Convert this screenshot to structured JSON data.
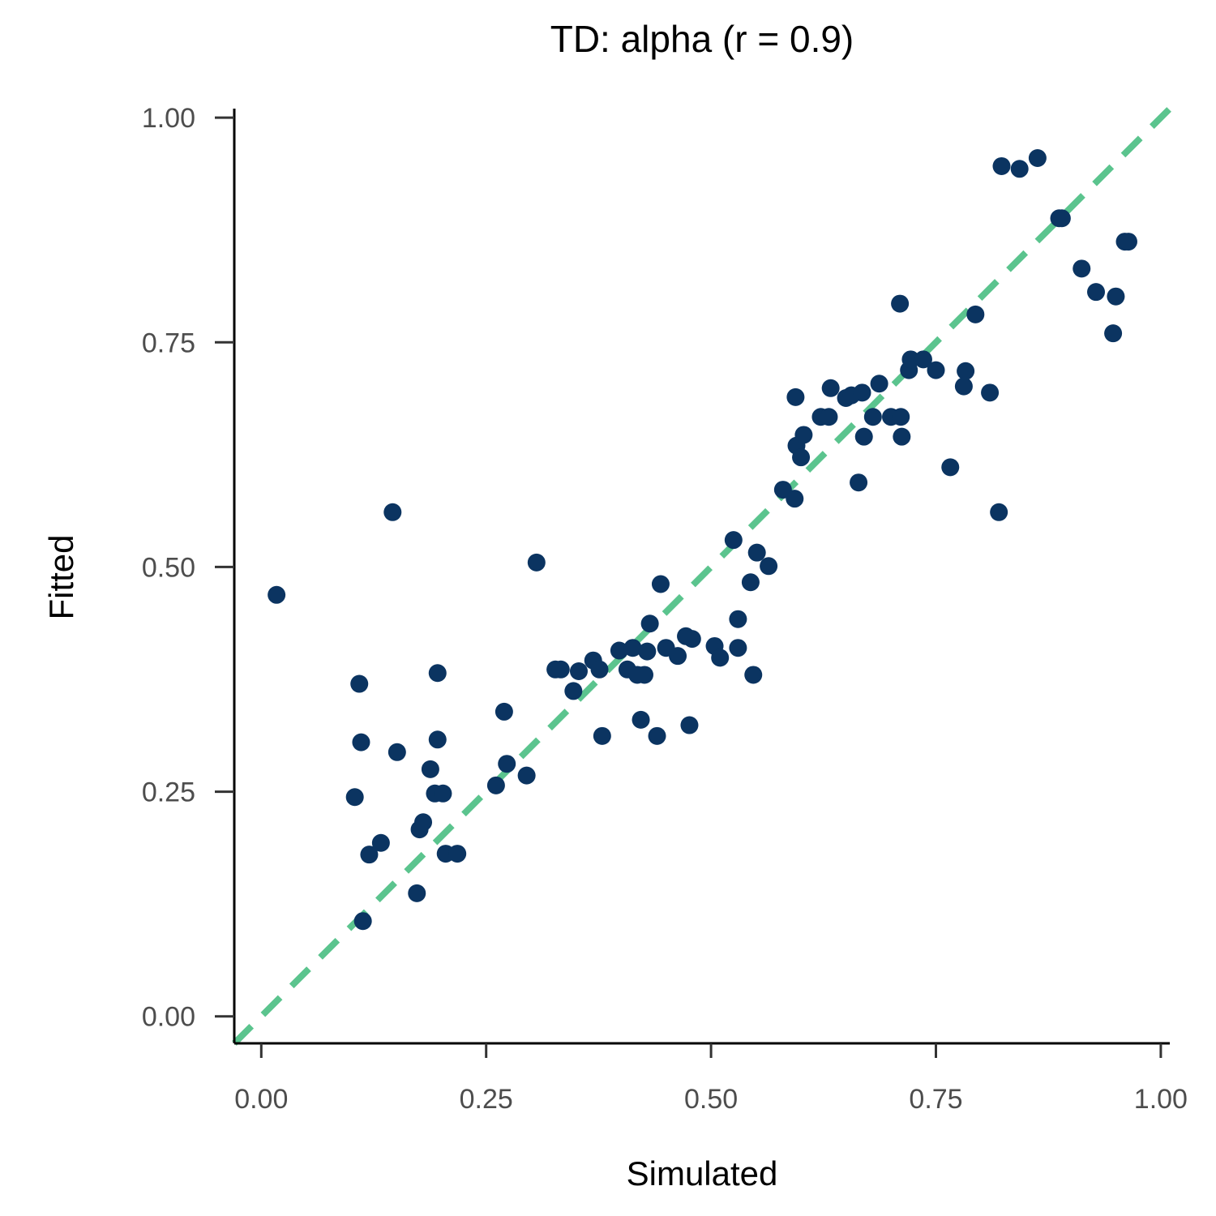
{
  "chart_data": {
    "type": "scatter",
    "title": "TD: alpha (r = 0.9)",
    "xlabel": "Simulated",
    "ylabel": "Fitted",
    "xlim": [
      -0.03,
      1.01
    ],
    "ylim": [
      -0.03,
      1.01
    ],
    "xticks": [
      0,
      0.25,
      0.5,
      0.75,
      1
    ],
    "yticks": [
      0,
      0.25,
      0.5,
      0.75,
      1
    ],
    "xtick_labels": [
      "0.00",
      "0.25",
      "0.50",
      "0.75",
      "1.00"
    ],
    "ytick_labels": [
      "0.00",
      "0.25",
      "0.50",
      "0.75",
      "1.00"
    ],
    "grid": false,
    "reference_line": {
      "style": "dashed",
      "slope": 1,
      "intercept": 0,
      "color": "#5bc48e"
    },
    "point_color": "#0b3461",
    "points": [
      [
        0.017,
        0.469
      ],
      [
        0.104,
        0.244
      ],
      [
        0.109,
        0.37
      ],
      [
        0.111,
        0.305
      ],
      [
        0.113,
        0.106
      ],
      [
        0.12,
        0.18
      ],
      [
        0.133,
        0.193
      ],
      [
        0.146,
        0.561
      ],
      [
        0.151,
        0.294
      ],
      [
        0.173,
        0.137
      ],
      [
        0.176,
        0.208
      ],
      [
        0.18,
        0.216
      ],
      [
        0.188,
        0.275
      ],
      [
        0.193,
        0.248
      ],
      [
        0.196,
        0.382
      ],
      [
        0.196,
        0.308
      ],
      [
        0.202,
        0.248
      ],
      [
        0.205,
        0.181
      ],
      [
        0.218,
        0.181
      ],
      [
        0.261,
        0.257
      ],
      [
        0.27,
        0.339
      ],
      [
        0.273,
        0.281
      ],
      [
        0.295,
        0.268
      ],
      [
        0.306,
        0.505
      ],
      [
        0.327,
        0.386
      ],
      [
        0.333,
        0.386
      ],
      [
        0.347,
        0.362
      ],
      [
        0.353,
        0.384
      ],
      [
        0.369,
        0.396
      ],
      [
        0.376,
        0.386
      ],
      [
        0.379,
        0.312
      ],
      [
        0.398,
        0.407
      ],
      [
        0.407,
        0.386
      ],
      [
        0.413,
        0.41
      ],
      [
        0.418,
        0.38
      ],
      [
        0.422,
        0.33
      ],
      [
        0.426,
        0.38
      ],
      [
        0.429,
        0.406
      ],
      [
        0.432,
        0.437
      ],
      [
        0.44,
        0.312
      ],
      [
        0.444,
        0.481
      ],
      [
        0.45,
        0.41
      ],
      [
        0.463,
        0.401
      ],
      [
        0.472,
        0.423
      ],
      [
        0.479,
        0.42
      ],
      [
        0.476,
        0.324
      ],
      [
        0.504,
        0.412
      ],
      [
        0.51,
        0.399
      ],
      [
        0.525,
        0.53
      ],
      [
        0.53,
        0.442
      ],
      [
        0.53,
        0.41
      ],
      [
        0.544,
        0.483
      ],
      [
        0.547,
        0.38
      ],
      [
        0.551,
        0.516
      ],
      [
        0.564,
        0.501
      ],
      [
        0.58,
        0.586
      ],
      [
        0.593,
        0.576
      ],
      [
        0.594,
        0.689
      ],
      [
        0.595,
        0.635
      ],
      [
        0.6,
        0.622
      ],
      [
        0.603,
        0.647
      ],
      [
        0.622,
        0.667
      ],
      [
        0.631,
        0.667
      ],
      [
        0.633,
        0.699
      ],
      [
        0.65,
        0.688
      ],
      [
        0.656,
        0.691
      ],
      [
        0.664,
        0.594
      ],
      [
        0.668,
        0.694
      ],
      [
        0.67,
        0.645
      ],
      [
        0.68,
        0.667
      ],
      [
        0.687,
        0.704
      ],
      [
        0.7,
        0.667
      ],
      [
        0.711,
        0.667
      ],
      [
        0.71,
        0.793
      ],
      [
        0.712,
        0.645
      ],
      [
        0.72,
        0.719
      ],
      [
        0.722,
        0.731
      ],
      [
        0.736,
        0.731
      ],
      [
        0.75,
        0.719
      ],
      [
        0.766,
        0.611
      ],
      [
        0.781,
        0.701
      ],
      [
        0.783,
        0.718
      ],
      [
        0.794,
        0.781
      ],
      [
        0.81,
        0.694
      ],
      [
        0.82,
        0.561
      ],
      [
        0.823,
        0.946
      ],
      [
        0.843,
        0.943
      ],
      [
        0.863,
        0.955
      ],
      [
        0.887,
        0.888
      ],
      [
        0.89,
        0.888
      ],
      [
        0.912,
        0.832
      ],
      [
        0.928,
        0.806
      ],
      [
        0.947,
        0.76
      ],
      [
        0.95,
        0.801
      ],
      [
        0.96,
        0.862
      ],
      [
        0.964,
        0.862
      ]
    ]
  }
}
